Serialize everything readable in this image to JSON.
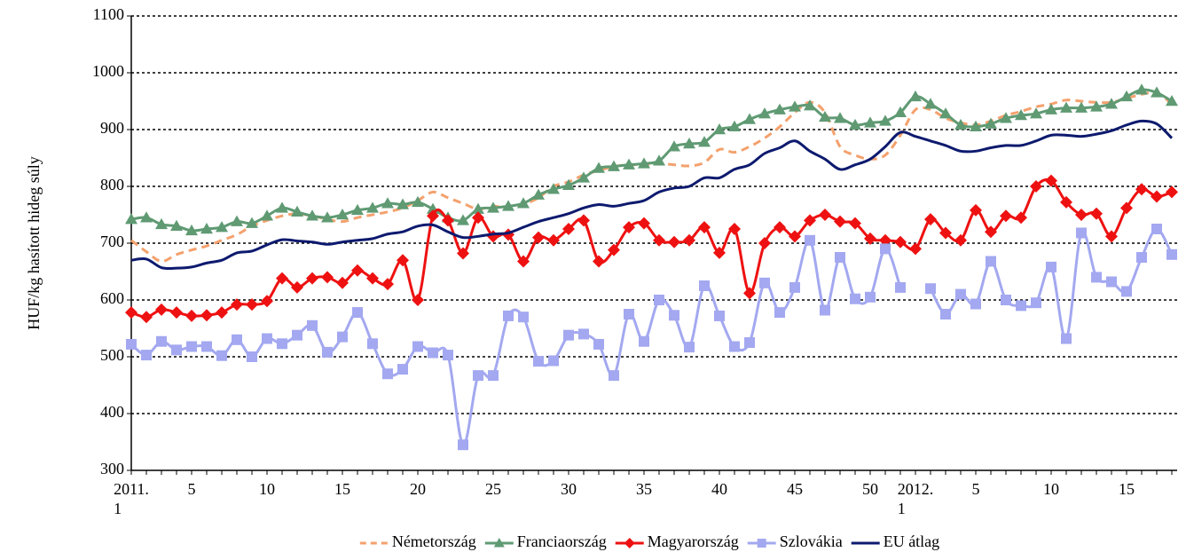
{
  "chart_data": {
    "type": "line",
    "y_label": "HUF/kg hasított hideg súly",
    "categories": [
      "2011. 1",
      null,
      null,
      null,
      "5",
      null,
      null,
      null,
      null,
      "10",
      null,
      null,
      null,
      null,
      "15",
      null,
      null,
      null,
      null,
      "20",
      null,
      null,
      null,
      null,
      "25",
      null,
      null,
      null,
      null,
      "30",
      null,
      null,
      null,
      null,
      "35",
      null,
      null,
      null,
      null,
      "40",
      null,
      null,
      null,
      null,
      "45",
      null,
      null,
      null,
      null,
      "50",
      null,
      null,
      "2012. 1",
      null,
      null,
      null,
      "5",
      null,
      null,
      null,
      null,
      "10",
      null,
      null,
      null,
      null,
      "15",
      null,
      null,
      null
    ],
    "ylim": [
      300,
      1100
    ],
    "yticks": [
      300,
      400,
      500,
      600,
      700,
      800,
      900,
      1000,
      1100
    ],
    "grid": true,
    "legend": "bottom",
    "series": [
      {
        "name": "Németország",
        "color": "#f4a16d",
        "dash": "dashed",
        "marker": "none",
        "values": [
          705,
          685,
          668,
          680,
          688,
          695,
          705,
          715,
          730,
          740,
          748,
          752,
          748,
          742,
          738,
          745,
          750,
          755,
          762,
          775,
          790,
          780,
          770,
          760,
          765,
          762,
          768,
          780,
          800,
          808,
          820,
          828,
          835,
          838,
          838,
          840,
          838,
          836,
          842,
          865,
          860,
          870,
          885,
          905,
          930,
          948,
          930,
          870,
          855,
          848,
          855,
          890,
          935,
          935,
          920,
          912,
          908,
          915,
          925,
          932,
          940,
          945,
          952,
          950,
          948,
          948,
          955,
          962,
          965,
          945
        ]
      },
      {
        "name": "Franciaország",
        "color": "#5f9a73",
        "dash": "solid",
        "marker": "triangle",
        "values": [
          742,
          745,
          733,
          730,
          722,
          725,
          728,
          738,
          735,
          748,
          762,
          755,
          748,
          745,
          750,
          758,
          762,
          770,
          768,
          772,
          760,
          745,
          740,
          760,
          762,
          765,
          770,
          785,
          795,
          802,
          815,
          832,
          835,
          838,
          840,
          845,
          870,
          875,
          878,
          900,
          905,
          918,
          928,
          935,
          940,
          942,
          922,
          920,
          908,
          912,
          915,
          930,
          958,
          945,
          928,
          908,
          905,
          910,
          920,
          925,
          928,
          935,
          938,
          938,
          940,
          945,
          958,
          970,
          965,
          950
        ]
      },
      {
        "name": "Magyarország",
        "color": "#ee1111",
        "dash": "solid",
        "marker": "diamond",
        "values": [
          578,
          570,
          583,
          578,
          572,
          573,
          578,
          592,
          592,
          598,
          638,
          622,
          638,
          640,
          630,
          652,
          638,
          628,
          670,
          600,
          748,
          740,
          682,
          745,
          712,
          715,
          668,
          710,
          705,
          725,
          740,
          668,
          688,
          728,
          735,
          705,
          702,
          705,
          728,
          683,
          725,
          612,
          700,
          728,
          712,
          740,
          750,
          738,
          735,
          708,
          705,
          702,
          690,
          742,
          718,
          705,
          758,
          720,
          748,
          745,
          800,
          810,
          772,
          750,
          752,
          712,
          762,
          795,
          782,
          790
        ]
      },
      {
        "name": "Szlovákia",
        "color": "#a3a8f0",
        "dash": "solid",
        "marker": "square",
        "values": [
          522,
          503,
          527,
          512,
          518,
          518,
          502,
          530,
          500,
          532,
          523,
          538,
          555,
          508,
          535,
          578,
          523,
          470,
          478,
          518,
          507,
          503,
          345,
          467,
          467,
          572,
          570,
          492,
          493,
          538,
          540,
          522,
          467,
          575,
          527,
          600,
          573,
          517,
          625,
          572,
          518,
          525,
          630,
          578,
          622,
          705,
          582,
          675,
          602,
          605,
          690,
          622,
          null,
          620,
          575,
          610,
          593,
          668,
          600,
          590,
          595,
          658,
          532,
          718,
          640,
          632,
          615,
          675,
          725,
          680
        ]
      },
      {
        "name": "EU átlag",
        "color": "#0d1a6e",
        "dash": "solid",
        "marker": "none",
        "values": [
          670,
          672,
          657,
          656,
          658,
          665,
          670,
          683,
          686,
          697,
          706,
          704,
          702,
          698,
          702,
          705,
          708,
          716,
          720,
          730,
          732,
          720,
          710,
          712,
          716,
          718,
          728,
          738,
          745,
          752,
          762,
          768,
          765,
          770,
          775,
          790,
          797,
          800,
          815,
          815,
          830,
          838,
          858,
          868,
          880,
          862,
          848,
          830,
          838,
          848,
          870,
          895,
          888,
          880,
          872,
          862,
          862,
          868,
          872,
          872,
          880,
          890,
          890,
          888,
          892,
          898,
          908,
          915,
          910,
          885
        ]
      }
    ]
  }
}
